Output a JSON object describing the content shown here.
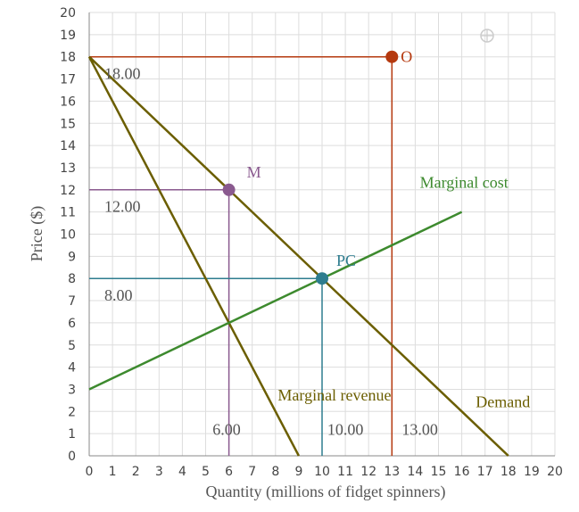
{
  "chart_data": {
    "type": "line",
    "xlabel": "Quantity (millions of fidget spinners)",
    "ylabel": "Price ($)",
    "xlim": [
      0,
      20
    ],
    "ylim": [
      0,
      20
    ],
    "xticks": [
      "0",
      "1",
      "2",
      "3",
      "4",
      "5",
      "6",
      "7",
      "8",
      "9",
      "10",
      "11",
      "12",
      "13",
      "14",
      "15",
      "16",
      "17",
      "18",
      "19",
      "20"
    ],
    "yticks": [
      "0",
      "1",
      "2",
      "3",
      "4",
      "5",
      "6",
      "7",
      "8",
      "9",
      "10",
      "11",
      "12",
      "13",
      "14",
      "15",
      "16",
      "17",
      "18",
      "19",
      "20"
    ],
    "grid": true,
    "series": [
      {
        "name": "Demand",
        "color": "#6b5e00",
        "points": [
          [
            0,
            18
          ],
          [
            18,
            0
          ]
        ]
      },
      {
        "name": "Marginal revenue",
        "color": "#6b5e00",
        "points": [
          [
            0,
            18
          ],
          [
            9,
            0
          ]
        ]
      },
      {
        "name": "Marginal cost",
        "color": "#3d8a2e",
        "points": [
          [
            0,
            3
          ],
          [
            16,
            11
          ]
        ]
      }
    ],
    "points": [
      {
        "name": "O",
        "x": 13,
        "y": 18,
        "color": "#b5390f"
      },
      {
        "name": "M",
        "x": 6,
        "y": 12,
        "color": "#8a5a8f"
      },
      {
        "name": "PC",
        "x": 10,
        "y": 8,
        "color": "#2e7d8f"
      }
    ],
    "guides": [
      {
        "color": "#b5390f",
        "x": 13,
        "y": 18
      },
      {
        "color": "#8a5a8f",
        "x": 6,
        "y": 12
      },
      {
        "color": "#2e7d8f",
        "x": 10,
        "y": 8
      }
    ],
    "price_labels": [
      "18.00",
      "12.00",
      "8.00"
    ],
    "quantity_labels": [
      "6.00",
      "10.00",
      "13.00"
    ]
  }
}
